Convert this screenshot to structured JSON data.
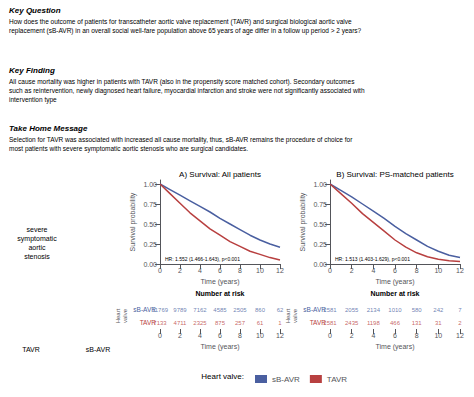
{
  "annotations": [
    {
      "title": "Key Question",
      "text": "How does the outcome of patients for transcatheter aortic valve replacement (TAVR) and surgical biological aortic valve\nreplacement (sB-AVR) in an overall social well-fare population above 65 years of age differ in a follow up period > 2 years?"
    },
    {
      "title": "Key Finding",
      "text": "All cause mortality was higher in patients with TAVR (also in the propensity score matched cohort). Secondary outcomes\nsuch as reintervention, newly diagnosed heart failure, myocardial infarction and stroke were not significantly associated with\nintervention type"
    },
    {
      "title": "Take Home Message",
      "text": "Selection for TAVR was associated with increased all cause mortality, thus, sB-AVR remains the procedure of choice for\nmost patients with severe symptomatic aortic stenosis who are surgical candidates."
    },
    {
      "text": "severe\nsymptomatic\naortic\nstenosis"
    },
    {
      "text": "TAVR"
    },
    {
      "text": "sB-AVR"
    }
  ],
  "legend": "bottom",
  "legend_title": "Heart valve:",
  "chart_data": [
    {
      "type": "line",
      "title": "A) Survival: All patients",
      "x_label": "Time (years)",
      "y_label": "Survival probability",
      "x": [
        0,
        1,
        2,
        3,
        4,
        5,
        6,
        7,
        8,
        9,
        10,
        11,
        12
      ],
      "xlim": [
        0,
        12
      ],
      "xticks": [
        0,
        2,
        4,
        6,
        8,
        10,
        12
      ],
      "ylim": [
        0,
        1.05
      ],
      "yticks": [
        {
          "value": 0,
          "label": "0.00"
        },
        0.25,
        {
          "value": 0.5,
          "label": "0.50"
        },
        0.75,
        {
          "value": 1,
          "label": "1.00"
        }
      ],
      "grid": false,
      "annotations": [
        "HR: 1.552 (1.466-1.643), p<0.001"
      ],
      "series": [
        {
          "name": "sB-AVR",
          "color": "#4a5fa0",
          "values": [
            1.0,
            0.93,
            0.86,
            0.79,
            0.72,
            0.65,
            0.57,
            0.5,
            0.43,
            0.36,
            0.3,
            0.25,
            0.21
          ]
        },
        {
          "name": "TAVR",
          "color": "#b84040",
          "values": [
            1.0,
            0.88,
            0.76,
            0.64,
            0.54,
            0.44,
            0.36,
            0.28,
            0.22,
            0.16,
            0.12,
            0.08,
            0.05
          ]
        }
      ],
      "number_at_risk": {
        "title": "Number at risk",
        "x_label": "Time (years)",
        "y_label": "Heart\nvalve",
        "x": [
          0,
          2,
          4,
          6,
          8,
          10,
          12
        ],
        "xlim": [
          0,
          12
        ],
        "xticks": [
          0,
          2,
          4,
          6,
          8,
          10,
          12
        ],
        "rows": [
          {
            "name": "sB-AVR",
            "color": "#4a5fa0",
            "values": [
              11769,
              9789,
              7162,
              4585,
              2505,
              860,
              62
            ]
          },
          {
            "name": "TAVR",
            "color": "#b84040",
            "values": [
              7133,
              4711,
              2325,
              875,
              257,
              61,
              1
            ]
          }
        ]
      }
    },
    {
      "type": "line",
      "title": "B) Survival: PS-matched patients",
      "x_label": "Time (years)",
      "y_label": "Survival probability",
      "x": [
        0,
        1,
        2,
        3,
        4,
        5,
        6,
        7,
        8,
        9,
        10,
        11,
        12
      ],
      "xlim": [
        0,
        12
      ],
      "xticks": [
        0,
        2,
        4,
        6,
        8,
        10,
        12
      ],
      "ylim": [
        0,
        1.05
      ],
      "yticks": [
        {
          "value": 0,
          "label": "0.00"
        },
        0.25,
        {
          "value": 0.5,
          "label": "0.50"
        },
        0.75,
        {
          "value": 1,
          "label": "1.00"
        }
      ],
      "grid": false,
      "annotations": [
        "HR: 1.513 (1.403-1.629), p<0.001"
      ],
      "series": [
        {
          "name": "sB-AVR",
          "color": "#4a5fa0",
          "values": [
            1.0,
            0.92,
            0.84,
            0.75,
            0.66,
            0.57,
            0.47,
            0.38,
            0.3,
            0.22,
            0.16,
            0.11,
            0.08
          ]
        },
        {
          "name": "TAVR",
          "color": "#b84040",
          "values": [
            1.0,
            0.88,
            0.76,
            0.63,
            0.52,
            0.41,
            0.3,
            0.21,
            0.14,
            0.09,
            0.06,
            0.04,
            0.03
          ]
        }
      ],
      "number_at_risk": {
        "title": "Number at risk",
        "x_label": "Time (years)",
        "y_label": "Heart\nvalve",
        "x": [
          0,
          2,
          4,
          6,
          8,
          10,
          12
        ],
        "xlim": [
          0,
          12
        ],
        "xticks": [
          0,
          2,
          4,
          6,
          8,
          10,
          12
        ],
        "rows": [
          {
            "name": "sB-AVR",
            "color": "#4a5fa0",
            "values": [
              2581,
              2055,
              2134,
              1010,
              580,
              242,
              7
            ]
          },
          {
            "name": "TAVR",
            "color": "#b84040",
            "values": [
              2581,
              2435,
              1198,
              466,
              131,
              31,
              2
            ]
          }
        ]
      }
    }
  ]
}
